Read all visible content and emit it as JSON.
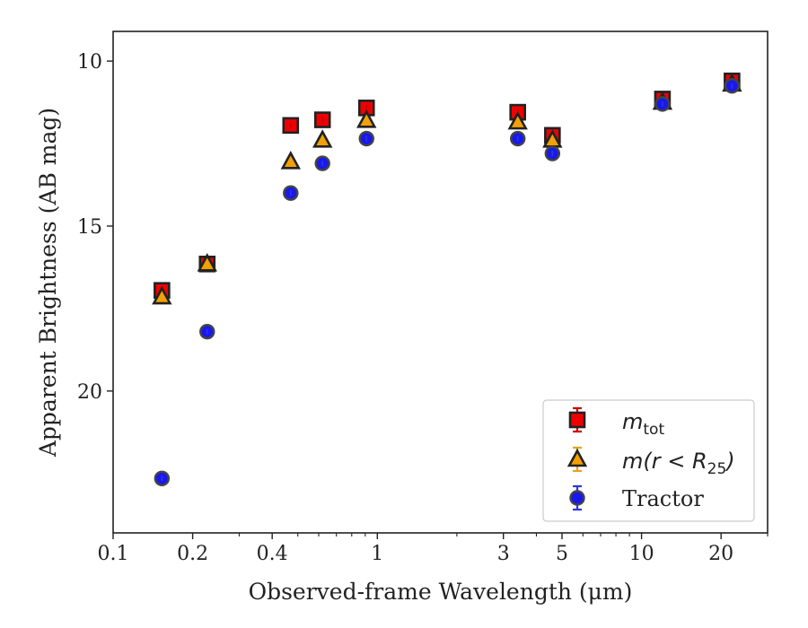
{
  "chart_data": {
    "type": "scatter",
    "xlabel": "Observed-frame Wavelength (μm)",
    "ylabel": "Apparent Brightness (AB mag)",
    "xscale": "log",
    "yaxis_inverted": true,
    "xlim": [
      0.1,
      30
    ],
    "ylim": [
      24.3,
      9.1
    ],
    "x_ticks": [
      {
        "value": 0.1,
        "label": "0.1"
      },
      {
        "value": 0.2,
        "label": "0.2"
      },
      {
        "value": 0.4,
        "label": "0.4"
      },
      {
        "value": 1,
        "label": "1"
      },
      {
        "value": 3,
        "label": "3"
      },
      {
        "value": 5,
        "label": "5"
      },
      {
        "value": 10,
        "label": "10"
      },
      {
        "value": 20,
        "label": "20"
      }
    ],
    "y_ticks": [
      {
        "value": 10,
        "label": "10"
      },
      {
        "value": 15,
        "label": "15"
      },
      {
        "value": 20,
        "label": "20"
      }
    ],
    "grid": false,
    "legend_position": "lower-right",
    "series": [
      {
        "name": "m_tot",
        "legend": {
          "base": "m",
          "sub": "tot"
        },
        "marker": "square",
        "color": "#ee0000",
        "error_color": "#cc0000",
        "points": [
          {
            "x": 0.153,
            "y": 16.95
          },
          {
            "x": 0.227,
            "y": 16.15
          },
          {
            "x": 0.47,
            "y": 11.95
          },
          {
            "x": 0.62,
            "y": 11.78
          },
          {
            "x": 0.91,
            "y": 11.42
          },
          {
            "x": 3.4,
            "y": 11.55
          },
          {
            "x": 4.6,
            "y": 12.25
          },
          {
            "x": 12,
            "y": 11.15
          },
          {
            "x": 22,
            "y": 10.6
          }
        ]
      },
      {
        "name": "m(r < R_25)",
        "legend": {
          "text": "m(r < R",
          "sub": "25",
          "close": ")"
        },
        "marker": "triangle",
        "color": "#f5a000",
        "error_color": "#e8a317",
        "points": [
          {
            "x": 0.153,
            "y": 17.15
          },
          {
            "x": 0.227,
            "y": 16.15
          },
          {
            "x": 0.47,
            "y": 13.05
          },
          {
            "x": 0.62,
            "y": 12.4
          },
          {
            "x": 0.91,
            "y": 11.8
          },
          {
            "x": 3.4,
            "y": 11.85
          },
          {
            "x": 4.6,
            "y": 12.4
          },
          {
            "x": 12,
            "y": 11.25
          },
          {
            "x": 22,
            "y": 10.7
          }
        ]
      },
      {
        "name": "Tractor",
        "marker": "circle",
        "color": "#1818ee",
        "error_color": "#3333dd",
        "points": [
          {
            "x": 0.153,
            "y": 22.65
          },
          {
            "x": 0.227,
            "y": 18.2
          },
          {
            "x": 0.47,
            "y": 14.0
          },
          {
            "x": 0.62,
            "y": 13.1
          },
          {
            "x": 0.91,
            "y": 12.35
          },
          {
            "x": 3.4,
            "y": 12.35
          },
          {
            "x": 4.6,
            "y": 12.8
          },
          {
            "x": 12,
            "y": 11.3
          },
          {
            "x": 22,
            "y": 10.75
          }
        ]
      }
    ]
  }
}
